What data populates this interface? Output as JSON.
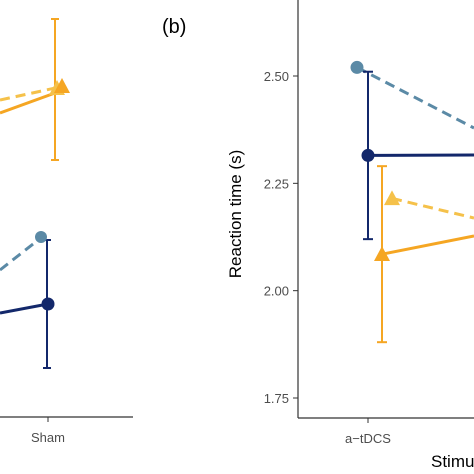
{
  "panels": {
    "b_label": "(b)"
  },
  "chart_data": [
    {
      "panel": "a",
      "type": "line",
      "categories": [
        "Sham"
      ],
      "series": [
        {
          "group": "upper",
          "line": "solid",
          "marker": "circle",
          "color": "#f5a623",
          "points": [
            {
              "x": "Sham",
              "y": null
            }
          ]
        },
        {
          "group": "upper",
          "line": "dashed",
          "marker": "triangle",
          "color": "#f5c14a",
          "points": [
            {
              "x": "Sham",
              "y": null
            }
          ]
        },
        {
          "group": "lower",
          "line": "solid",
          "marker": "circle",
          "color": "#13286b",
          "points": [
            {
              "x": "Sham",
              "y": null
            }
          ]
        },
        {
          "group": "lower",
          "line": "dashed",
          "marker": "circle",
          "color": "#5b8aa6",
          "points": [
            {
              "x": "Sham",
              "y": null
            }
          ]
        }
      ]
    },
    {
      "panel": "b",
      "type": "line",
      "ylabel": "Reaction time (s)",
      "xlabel": "Stimu",
      "categories": [
        "a−tDCS"
      ],
      "yticks": [
        "1.75",
        "2.00",
        "2.25",
        "2.50"
      ],
      "ylim": [
        1.7,
        2.72
      ],
      "series": [
        {
          "line": "dashed",
          "marker": "circle",
          "color": "#5b8aa6",
          "points": [
            {
              "x": "a−tDCS",
              "y": 2.52
            }
          ]
        },
        {
          "line": "solid",
          "marker": "circle",
          "color": "#13286b",
          "points": [
            {
              "x": "a−tDCS",
              "y": 2.315,
              "ci": [
                2.12,
                2.51
              ]
            }
          ]
        },
        {
          "line": "dashed",
          "marker": "triangle",
          "color": "#f5c14a",
          "points": [
            {
              "x": "a−tDCS",
              "y": 2.215
            }
          ]
        },
        {
          "line": "solid",
          "marker": "triangle",
          "color": "#f5a623",
          "points": [
            {
              "x": "a−tDCS",
              "y": 2.085,
              "ci": [
                1.88,
                2.29
              ]
            }
          ]
        }
      ]
    }
  ]
}
